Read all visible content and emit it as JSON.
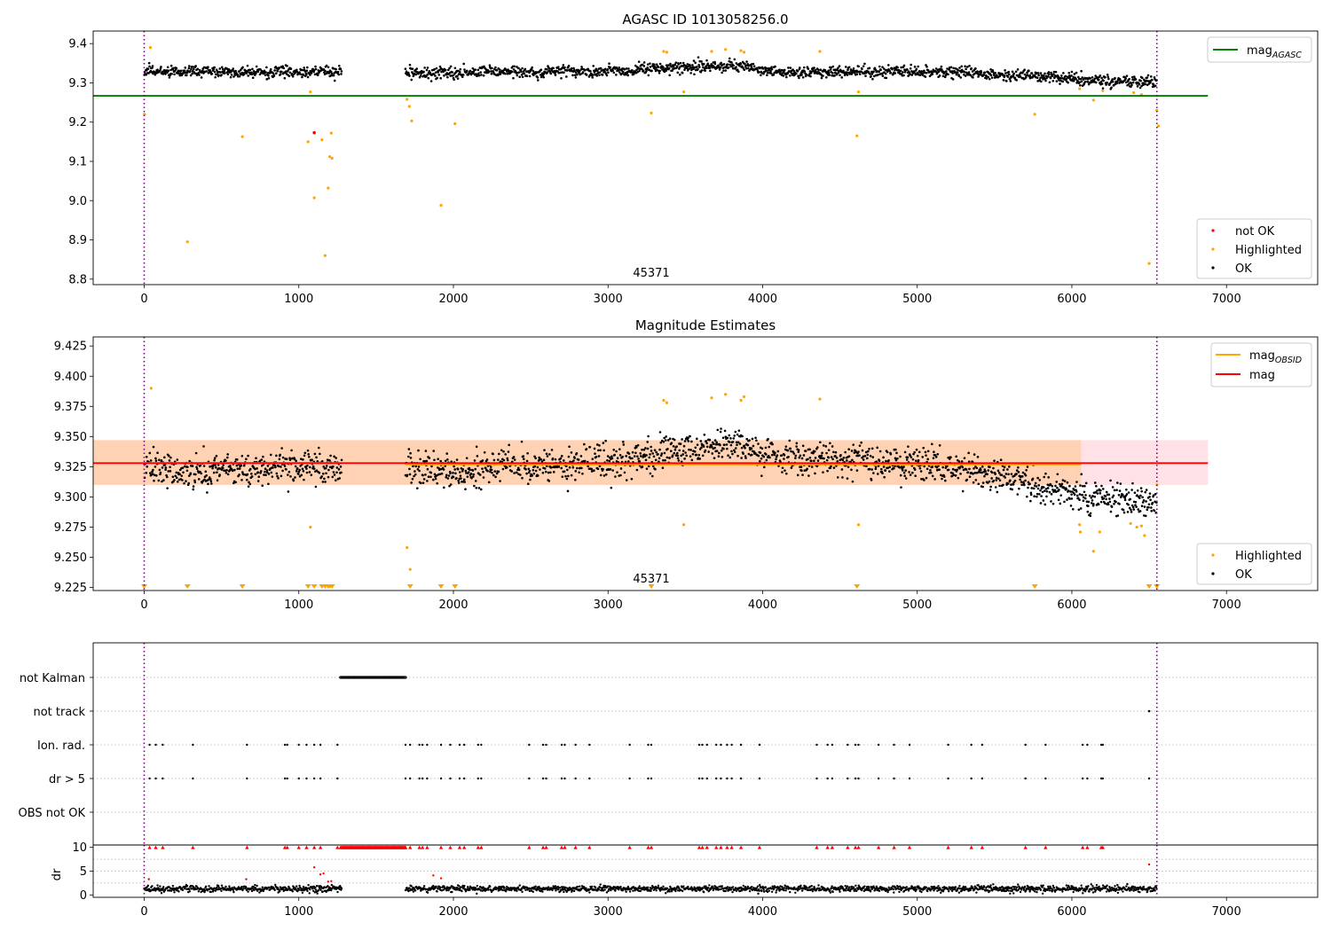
{
  "figure": {
    "background": "#ffffff"
  },
  "colors": {
    "ok": "#000000",
    "highlighted": "#ffa500",
    "not_ok": "#ff0000",
    "mag_agasc": "#008000",
    "mag_obsid": "#ffa500",
    "mag": "#ff0000",
    "boundary": "#800080",
    "band_inner": "#ffd2b4",
    "band_outer": "#ffe1e6"
  },
  "chart_data": [
    {
      "type": "scatter",
      "name": "top",
      "title": "AGASC ID 1013058256.0",
      "xlim": [
        -330,
        7590
      ],
      "ylim": [
        8.786,
        9.432
      ],
      "xticks": [
        0,
        1000,
        2000,
        3000,
        4000,
        5000,
        6000,
        7000
      ],
      "xtick_labels": [
        "0",
        "1000",
        "2000",
        "3000",
        "4000",
        "5000",
        "6000",
        "7000"
      ],
      "yticks": [
        8.8,
        8.9,
        9.0,
        9.1,
        9.2,
        9.3,
        9.4
      ],
      "ytick_labels": [
        "8.8",
        "8.9",
        "9.0",
        "9.1",
        "9.2",
        "9.3",
        "9.4"
      ],
      "annotation": "45371",
      "vlines": [
        0,
        6550
      ],
      "segments": [
        [
          0,
          1280
        ],
        [
          1690,
          6550
        ]
      ],
      "ok_trend": [
        [
          0,
          9.33
        ],
        [
          1000,
          9.33
        ],
        [
          2000,
          9.325
        ],
        [
          3000,
          9.33
        ],
        [
          3800,
          9.35
        ],
        [
          4200,
          9.33
        ],
        [
          5000,
          9.33
        ],
        [
          6000,
          9.31
        ],
        [
          6550,
          9.3
        ]
      ],
      "ok_spread": 0.018,
      "hline": {
        "y": 9.267,
        "x": [
          -330,
          6880
        ]
      },
      "highlighted": [
        [
          2,
          9.22
        ],
        [
          40,
          9.39
        ],
        [
          280,
          8.895
        ],
        [
          635,
          9.163
        ],
        [
          1060,
          9.15
        ],
        [
          1075,
          9.277
        ],
        [
          1100,
          9.007
        ],
        [
          1150,
          9.155
        ],
        [
          1170,
          8.86
        ],
        [
          1190,
          9.032
        ],
        [
          1200,
          9.112
        ],
        [
          1210,
          9.172
        ],
        [
          1215,
          9.108
        ],
        [
          1700,
          9.258
        ],
        [
          1715,
          9.24
        ],
        [
          1730,
          9.203
        ],
        [
          1920,
          8.988
        ],
        [
          2010,
          9.196
        ],
        [
          3280,
          9.223
        ],
        [
          3360,
          9.38
        ],
        [
          3380,
          9.378
        ],
        [
          3490,
          9.277
        ],
        [
          3670,
          9.38
        ],
        [
          3760,
          9.385
        ],
        [
          3860,
          9.382
        ],
        [
          3880,
          9.378
        ],
        [
          4370,
          9.38
        ],
        [
          4610,
          9.165
        ],
        [
          4620,
          9.277
        ],
        [
          5760,
          9.22
        ],
        [
          6050,
          9.285
        ],
        [
          6140,
          9.256
        ],
        [
          6200,
          9.28
        ],
        [
          6400,
          9.275
        ],
        [
          6450,
          9.27
        ],
        [
          6500,
          8.84
        ],
        [
          6560,
          9.19
        ],
        [
          6550,
          9.23
        ]
      ],
      "not_ok": [
        [
          1100,
          9.173
        ]
      ],
      "legend_upper": [
        {
          "label": "mag",
          "sub": "AGASC"
        }
      ],
      "legend_lower": [
        {
          "label": "not OK"
        },
        {
          "label": "Highlighted"
        },
        {
          "label": "OK"
        }
      ]
    },
    {
      "type": "scatter",
      "name": "middle",
      "title": "Magnitude Estimates",
      "xlim": [
        -330,
        7590
      ],
      "ylim": [
        9.2225,
        9.4325
      ],
      "xticks": [
        0,
        1000,
        2000,
        3000,
        4000,
        5000,
        6000,
        7000
      ],
      "xtick_labels": [
        "0",
        "1000",
        "2000",
        "3000",
        "4000",
        "5000",
        "6000",
        "7000"
      ],
      "yticks": [
        9.225,
        9.25,
        9.275,
        9.3,
        9.325,
        9.35,
        9.375,
        9.4,
        9.425
      ],
      "ytick_labels": [
        "9.225",
        "9.250",
        "9.275",
        "9.300",
        "9.325",
        "9.350",
        "9.375",
        "9.400",
        "9.425"
      ],
      "annotation": "45371",
      "vlines": [
        0,
        6550
      ],
      "segments": [
        [
          0,
          1280
        ],
        [
          1690,
          6550
        ]
      ],
      "ok_trend": [
        [
          0,
          9.325
        ],
        [
          1000,
          9.326
        ],
        [
          2000,
          9.322
        ],
        [
          3000,
          9.33
        ],
        [
          3800,
          9.345
        ],
        [
          4200,
          9.33
        ],
        [
          5000,
          9.33
        ],
        [
          5800,
          9.31
        ],
        [
          6100,
          9.305
        ],
        [
          6550,
          9.3
        ]
      ],
      "ok_spread": 0.016,
      "band_outer": {
        "y": [
          9.31,
          9.347
        ],
        "x": [
          -330,
          6880
        ]
      },
      "band_inner": {
        "y": [
          9.31,
          9.347
        ],
        "x": [
          -330,
          6060
        ]
      },
      "mag_line": {
        "y": 9.328,
        "x": [
          -330,
          6880
        ]
      },
      "obsid_segments": [
        [
          0,
          1280,
          9.328
        ],
        [
          1690,
          6060,
          9.327
        ]
      ],
      "highlighted": [
        [
          45,
          9.39
        ],
        [
          1075,
          9.275
        ],
        [
          1700,
          9.258
        ],
        [
          1720,
          9.24
        ],
        [
          3360,
          9.38
        ],
        [
          3380,
          9.378
        ],
        [
          3490,
          9.277
        ],
        [
          3670,
          9.382
        ],
        [
          3760,
          9.385
        ],
        [
          3860,
          9.38
        ],
        [
          3880,
          9.383
        ],
        [
          4370,
          9.381
        ],
        [
          4620,
          9.277
        ],
        [
          6050,
          9.277
        ],
        [
          6055,
          9.271
        ],
        [
          6140,
          9.255
        ],
        [
          6180,
          9.271
        ],
        [
          6380,
          9.278
        ],
        [
          6420,
          9.275
        ],
        [
          6450,
          9.276
        ],
        [
          6470,
          9.268
        ],
        [
          6550,
          9.31
        ]
      ],
      "floor_markers": [
        0,
        280,
        635,
        1060,
        1100,
        1150,
        1170,
        1190,
        1200,
        1215,
        1720,
        1920,
        2010,
        3280,
        4610,
        5760,
        6500,
        6550
      ],
      "legend_upper": [
        {
          "label": "mag",
          "sub": "OBSID"
        },
        {
          "label": "mag"
        }
      ],
      "legend_lower": [
        {
          "label": "Highlighted"
        },
        {
          "label": "OK"
        }
      ]
    },
    {
      "type": "scatter",
      "name": "flags",
      "xlim": [
        -330,
        7590
      ],
      "categories": [
        "not Kalman",
        "not track",
        "Ion. rad.",
        "dr > 5",
        "OBS not OK"
      ],
      "vlines": [
        0,
        6550
      ],
      "not_kalman_range": [
        1270,
        1690
      ],
      "not_track_x": [
        6500
      ],
      "flag_x": [
        35,
        75,
        120,
        315,
        665,
        910,
        925,
        1000,
        1050,
        1100,
        1140,
        1250,
        1690,
        1720,
        1780,
        1800,
        1830,
        1920,
        1980,
        2040,
        2070,
        2160,
        2180,
        2490,
        2580,
        2600,
        2700,
        2720,
        2790,
        2880,
        3140,
        3260,
        3280,
        3590,
        3610,
        3640,
        3700,
        3730,
        3770,
        3800,
        3860,
        3980,
        4350,
        4420,
        4450,
        4550,
        4600,
        4620,
        4750,
        4850,
        4950,
        5200,
        5350,
        5420,
        5700,
        5830,
        6070,
        6100,
        6190,
        6200
      ]
    },
    {
      "type": "scatter",
      "name": "dr",
      "ylabel": "dr",
      "xlim": [
        -330,
        7590
      ],
      "ylim": [
        -0.5,
        10.5
      ],
      "xticks": [
        0,
        1000,
        2000,
        3000,
        4000,
        5000,
        6000,
        7000
      ],
      "xtick_labels": [
        "0",
        "1000",
        "2000",
        "3000",
        "4000",
        "5000",
        "6000",
        "7000"
      ],
      "yticks": [
        0,
        5,
        10
      ],
      "ytick_labels": [
        "0",
        "5",
        "10"
      ],
      "vlines": [
        0,
        6550
      ],
      "segments": [
        [
          0,
          1280
        ],
        [
          1690,
          6550
        ]
      ],
      "ok_level": 1.3,
      "ok_spread": 0.6,
      "capped_x": [
        1270,
        1690
      ],
      "extra_red": [
        [
          1100,
          5.8
        ],
        [
          1140,
          4.3
        ],
        [
          1160,
          4.5
        ],
        [
          1190,
          2.8
        ],
        [
          1210,
          2.9
        ],
        [
          1870,
          4.1
        ],
        [
          1920,
          3.5
        ],
        [
          30,
          3.3
        ],
        [
          660,
          3.3
        ],
        [
          6500,
          6.4
        ]
      ]
    }
  ]
}
